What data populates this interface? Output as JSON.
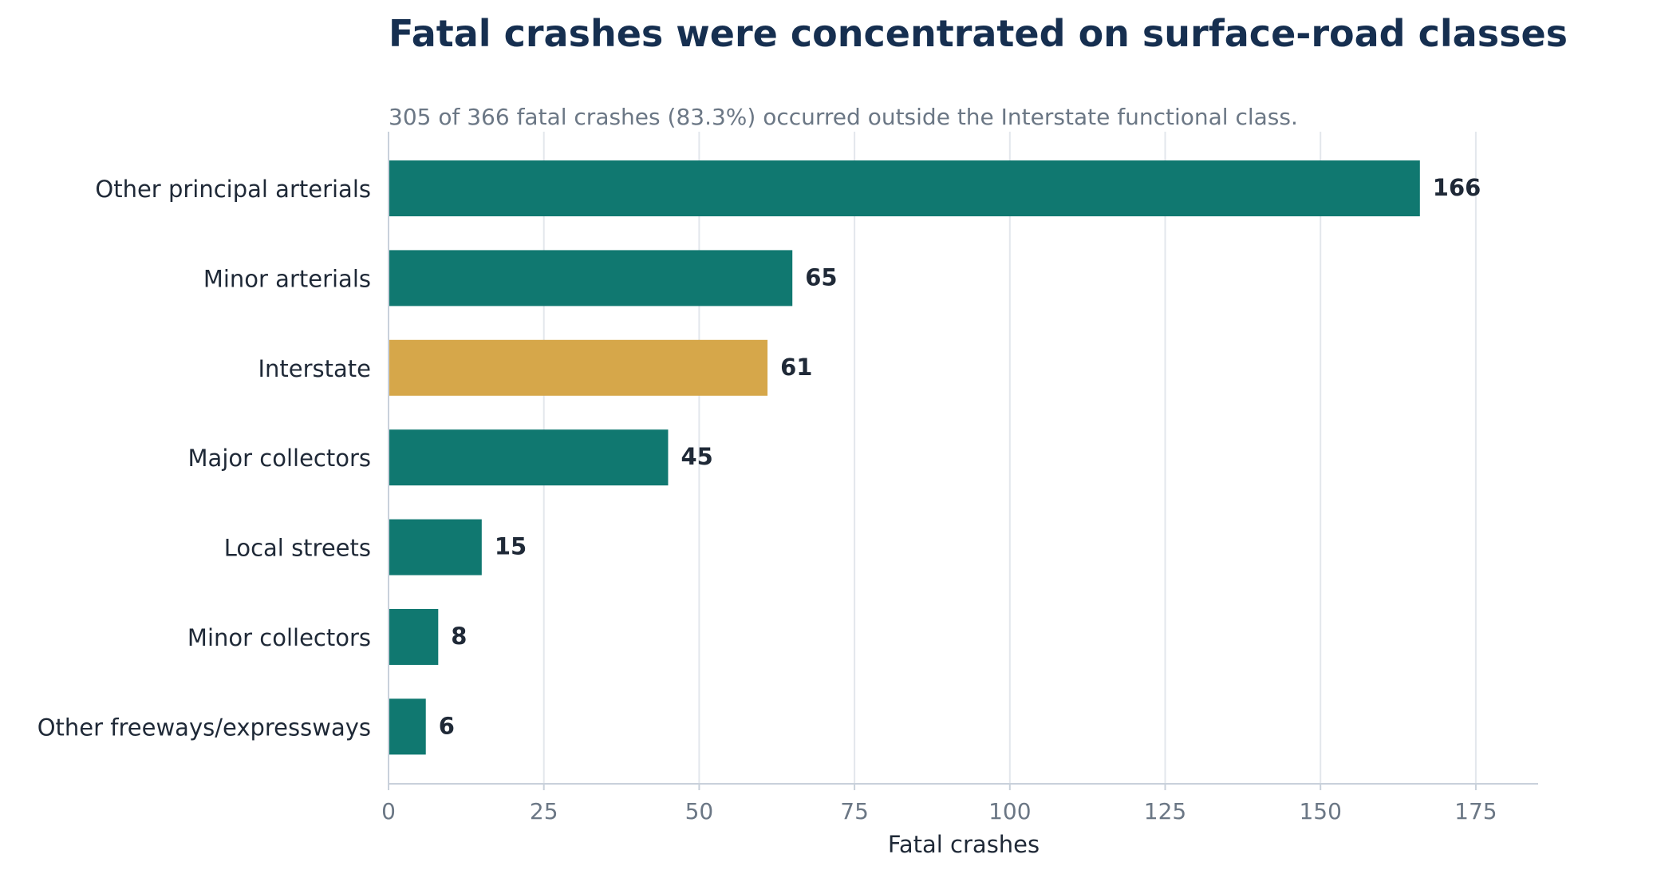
{
  "chart_data": {
    "type": "bar",
    "orientation": "horizontal",
    "title": "Fatal crashes were concentrated on surface-road classes",
    "subtitle": "305 of 366 fatal crashes (83.3%) occurred outside the Interstate functional class.",
    "xlabel": "Fatal crashes",
    "ylabel": "",
    "categories": [
      "Other principal arterials",
      "Minor arterials",
      "Interstate",
      "Major collectors",
      "Local streets",
      "Minor collectors",
      "Other freeways/expressways"
    ],
    "values": [
      166,
      65,
      61,
      45,
      15,
      8,
      6
    ],
    "highlight_category": "Interstate",
    "xlim": [
      0,
      185
    ],
    "xticks": [
      0,
      25,
      50,
      75,
      100,
      125,
      150,
      175
    ],
    "xtick_labels": [
      "0",
      "25",
      "50",
      "75",
      "100",
      "125",
      "150",
      "175"
    ],
    "grid": "vertical",
    "legend": "none"
  },
  "colors": {
    "bar": "#107870",
    "highlight": "#D6A74A",
    "title": "#162F50",
    "subtitle": "#6B7785",
    "label": "#1F2937",
    "tick": "#6B7785",
    "grid": "#E3E7EC",
    "axis": "#C9D1DB",
    "value": "#1F2937"
  }
}
